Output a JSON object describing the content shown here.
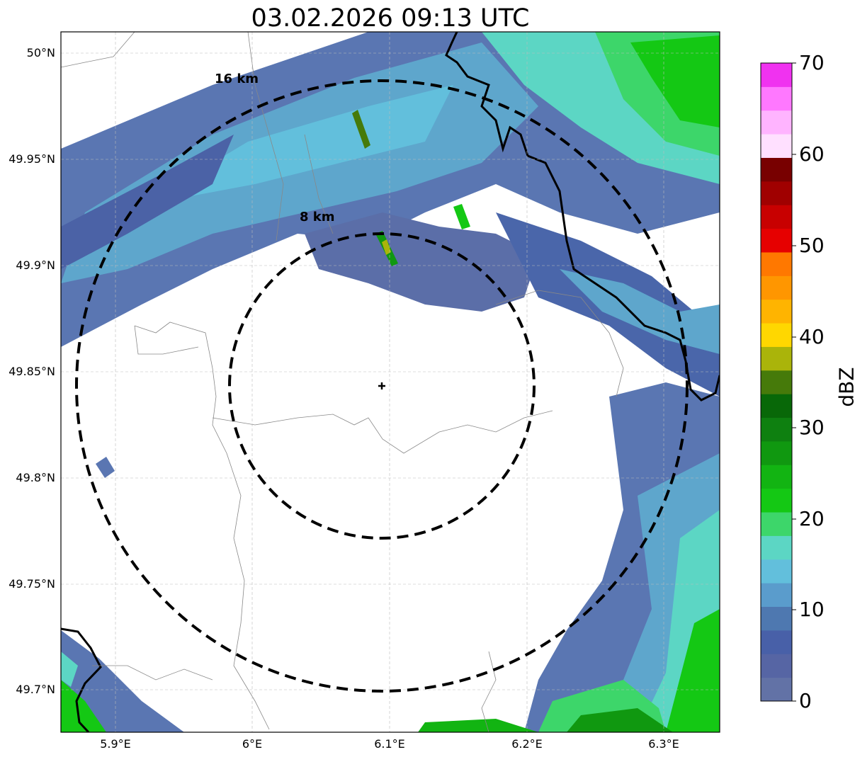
{
  "title": "03.02.2026 09:13 UTC",
  "map": {
    "lat_ticks": [
      {
        "label": "50°N",
        "value": 50.0
      },
      {
        "label": "49.95°N",
        "value": 49.95
      },
      {
        "label": "49.9°N",
        "value": 49.9
      },
      {
        "label": "49.85°N",
        "value": 49.85
      },
      {
        "label": "49.8°N",
        "value": 49.8
      },
      {
        "label": "49.75°N",
        "value": 49.75
      },
      {
        "label": "49.7°N",
        "value": 49.7
      }
    ],
    "lon_ticks": [
      {
        "label": "5.9°E",
        "value": 5.9
      },
      {
        "label": "6°E",
        "value": 6.0
      },
      {
        "label": "6.1°E",
        "value": 6.1
      },
      {
        "label": "6.2°E",
        "value": 6.2
      },
      {
        "label": "6.3°E",
        "value": 6.3
      }
    ],
    "range_rings": [
      {
        "label": "16 km",
        "radius_km": 16
      },
      {
        "label": "8 km",
        "radius_km": 8
      }
    ],
    "radar_site": {
      "lat": 49.843,
      "lon": 6.096
    }
  },
  "colorbar": {
    "label": "dBZ",
    "tick_labels": [
      "0",
      "10",
      "20",
      "30",
      "40",
      "50",
      "60",
      "70"
    ],
    "colors": [
      "#6272a6",
      "#5665a4",
      "#4860a8",
      "#4e78b0",
      "#5a9ccc",
      "#62bfdc",
      "#5cd6c4",
      "#3dd66a",
      "#14c814",
      "#12b412",
      "#109810",
      "#0e8010",
      "#086808",
      "#467a0a",
      "#aab40a",
      "#ffd700",
      "#ffb400",
      "#ff9600",
      "#ff7800",
      "#e60000",
      "#c80000",
      "#a00000",
      "#780000",
      "#ffe0ff",
      "#ffb4ff",
      "#ff78ff",
      "#f032f0"
    ]
  }
}
